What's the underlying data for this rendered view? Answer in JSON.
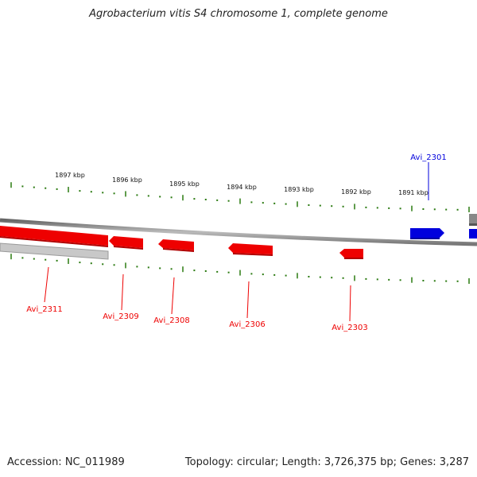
{
  "title": "Agrobacterium vitis S4 chromosome 1, complete genome",
  "footer": {
    "accession": "Accession: NC_011989",
    "summary": "Topology: circular; Length: 3,726,375 bp; Genes: 3,287"
  },
  "colors": {
    "forward_gene": "#0000dd",
    "reverse_gene": "#ee0000",
    "tick": "#2a7a10",
    "backbone": "#888888",
    "rna_feature": "#c8c8c8"
  },
  "scale": {
    "unit": "kbp",
    "labels": [
      "1897 kbp",
      "1896 kbp",
      "1895 kbp",
      "1894 kbp",
      "1893 kbp",
      "1892 kbp",
      "1891 kbp"
    ]
  },
  "genes": [
    {
      "label": "Avi_2311",
      "strand": "reverse"
    },
    {
      "label": "Avi_2309",
      "strand": "reverse"
    },
    {
      "label": "Avi_2308",
      "strand": "reverse"
    },
    {
      "label": "Avi_2306",
      "strand": "reverse"
    },
    {
      "label": "Avi_2303",
      "strand": "reverse"
    },
    {
      "label": "Avi_2301",
      "strand": "forward"
    }
  ]
}
